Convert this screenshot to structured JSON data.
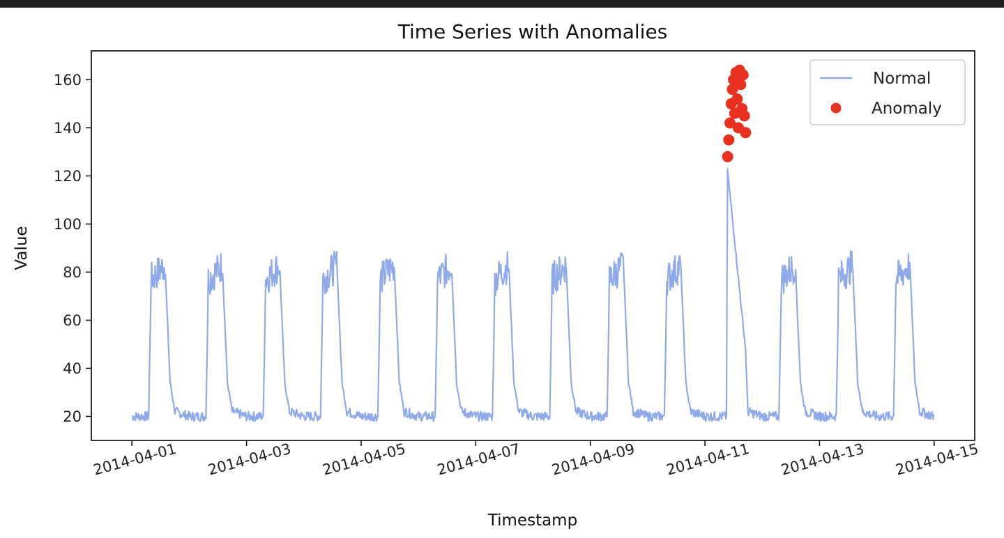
{
  "chart_data": {
    "type": "line",
    "title": "Time Series with Anomalies",
    "xlabel": "Timestamp",
    "ylabel": "Value",
    "x_tick_labels": [
      "2014-04-01",
      "2014-04-03",
      "2014-04-05",
      "2014-04-07",
      "2014-04-09",
      "2014-04-11",
      "2014-04-13",
      "2014-04-15"
    ],
    "x_ticks": [
      "2014-04-01",
      "2014-04-03",
      "2014-04-05",
      "2014-04-07",
      "2014-04-09",
      "2014-04-11",
      "2014-04-13",
      "2014-04-15"
    ],
    "xlim": [
      "2014-03-31 07:00",
      "2014-04-15 17:00"
    ],
    "y_ticks": [
      20,
      40,
      60,
      80,
      100,
      120,
      140,
      160
    ],
    "ylim": [
      10,
      172
    ],
    "legend": {
      "placement": "top-right",
      "entries": [
        "Normal",
        "Anomaly"
      ]
    },
    "grid": false,
    "series": [
      {
        "name": "Normal",
        "kind": "line",
        "color": "#8eaaea",
        "points": [
          [
            "2014-04-01 00:00",
            20
          ],
          [
            "2014-04-01 07:00",
            20
          ],
          [
            "2014-04-01 08:00",
            74
          ],
          [
            "2014-04-01 14:00",
            80
          ],
          [
            "2014-04-01 16:00",
            34
          ],
          [
            "2014-04-01 18:00",
            22
          ],
          [
            "2014-04-02 00:00",
            20
          ],
          [
            "2014-04-02 07:00",
            20
          ],
          [
            "2014-04-02 08:00",
            74
          ],
          [
            "2014-04-02 14:00",
            80
          ],
          [
            "2014-04-02 16:00",
            34
          ],
          [
            "2014-04-02 18:00",
            22
          ],
          [
            "2014-04-03 00:00",
            20
          ],
          [
            "2014-04-03 07:00",
            20
          ],
          [
            "2014-04-03 08:00",
            74
          ],
          [
            "2014-04-03 14:00",
            80
          ],
          [
            "2014-04-03 16:00",
            34
          ],
          [
            "2014-04-03 18:00",
            22
          ],
          [
            "2014-04-04 00:00",
            20
          ],
          [
            "2014-04-04 07:00",
            20
          ],
          [
            "2014-04-04 08:00",
            74
          ],
          [
            "2014-04-04 14:00",
            80
          ],
          [
            "2014-04-04 16:00",
            34
          ],
          [
            "2014-04-04 18:00",
            22
          ],
          [
            "2014-04-05 00:00",
            20
          ],
          [
            "2014-04-05 07:00",
            20
          ],
          [
            "2014-04-05 08:00",
            74
          ],
          [
            "2014-04-05 14:00",
            80
          ],
          [
            "2014-04-05 16:00",
            34
          ],
          [
            "2014-04-05 18:00",
            22
          ],
          [
            "2014-04-06 00:00",
            20
          ],
          [
            "2014-04-06 07:00",
            20
          ],
          [
            "2014-04-06 08:00",
            74
          ],
          [
            "2014-04-06 14:00",
            80
          ],
          [
            "2014-04-06 16:00",
            34
          ],
          [
            "2014-04-06 18:00",
            22
          ],
          [
            "2014-04-07 00:00",
            20
          ],
          [
            "2014-04-07 07:00",
            20
          ],
          [
            "2014-04-07 08:00",
            74
          ],
          [
            "2014-04-07 14:00",
            80
          ],
          [
            "2014-04-07 16:00",
            34
          ],
          [
            "2014-04-07 18:00",
            22
          ],
          [
            "2014-04-08 00:00",
            20
          ],
          [
            "2014-04-08 07:00",
            20
          ],
          [
            "2014-04-08 08:00",
            74
          ],
          [
            "2014-04-08 14:00",
            80
          ],
          [
            "2014-04-08 16:00",
            34
          ],
          [
            "2014-04-08 18:00",
            22
          ],
          [
            "2014-04-09 00:00",
            20
          ],
          [
            "2014-04-09 07:00",
            20
          ],
          [
            "2014-04-09 08:00",
            74
          ],
          [
            "2014-04-09 14:00",
            80
          ],
          [
            "2014-04-09 16:00",
            34
          ],
          [
            "2014-04-09 18:00",
            22
          ],
          [
            "2014-04-10 00:00",
            20
          ],
          [
            "2014-04-10 07:00",
            20
          ],
          [
            "2014-04-10 08:00",
            74
          ],
          [
            "2014-04-10 14:00",
            80
          ],
          [
            "2014-04-10 16:00",
            34
          ],
          [
            "2014-04-10 18:00",
            22
          ],
          [
            "2014-04-11 00:00",
            20
          ],
          [
            "2014-04-11 09:00",
            20
          ],
          [
            "2014-04-11 09:30",
            122
          ],
          [
            "2014-04-11 17:00",
            48
          ],
          [
            "2014-04-11 18:00",
            22
          ],
          [
            "2014-04-12 00:00",
            20
          ],
          [
            "2014-04-12 07:00",
            20
          ],
          [
            "2014-04-12 08:00",
            74
          ],
          [
            "2014-04-12 14:00",
            80
          ],
          [
            "2014-04-12 16:00",
            34
          ],
          [
            "2014-04-12 18:00",
            22
          ],
          [
            "2014-04-13 00:00",
            20
          ],
          [
            "2014-04-13 07:00",
            20
          ],
          [
            "2014-04-13 08:00",
            74
          ],
          [
            "2014-04-13 14:00",
            80
          ],
          [
            "2014-04-13 16:00",
            34
          ],
          [
            "2014-04-13 18:00",
            22
          ],
          [
            "2014-04-14 00:00",
            20
          ],
          [
            "2014-04-14 07:00",
            20
          ],
          [
            "2014-04-14 08:00",
            74
          ],
          [
            "2014-04-14 14:00",
            80
          ],
          [
            "2014-04-14 16:00",
            34
          ],
          [
            "2014-04-14 18:00",
            22
          ],
          [
            "2014-04-15 00:00",
            20
          ]
        ]
      },
      {
        "name": "Anomaly",
        "kind": "scatter",
        "color": "#e8311f",
        "points": [
          [
            "2014-04-11 09:30",
            128
          ],
          [
            "2014-04-11 10:00",
            135
          ],
          [
            "2014-04-11 10:30",
            142
          ],
          [
            "2014-04-11 11:00",
            150
          ],
          [
            "2014-04-11 11:30",
            156
          ],
          [
            "2014-04-11 12:00",
            160
          ],
          [
            "2014-04-11 12:30",
            146
          ],
          [
            "2014-04-11 13:00",
            163
          ],
          [
            "2014-04-11 13:30",
            152
          ],
          [
            "2014-04-11 14:00",
            140
          ],
          [
            "2014-04-11 14:30",
            164
          ],
          [
            "2014-04-11 15:00",
            158
          ],
          [
            "2014-04-11 15:30",
            148
          ],
          [
            "2014-04-11 16:00",
            162
          ],
          [
            "2014-04-11 16:30",
            145
          ],
          [
            "2014-04-11 17:00",
            138
          ]
        ]
      }
    ]
  }
}
